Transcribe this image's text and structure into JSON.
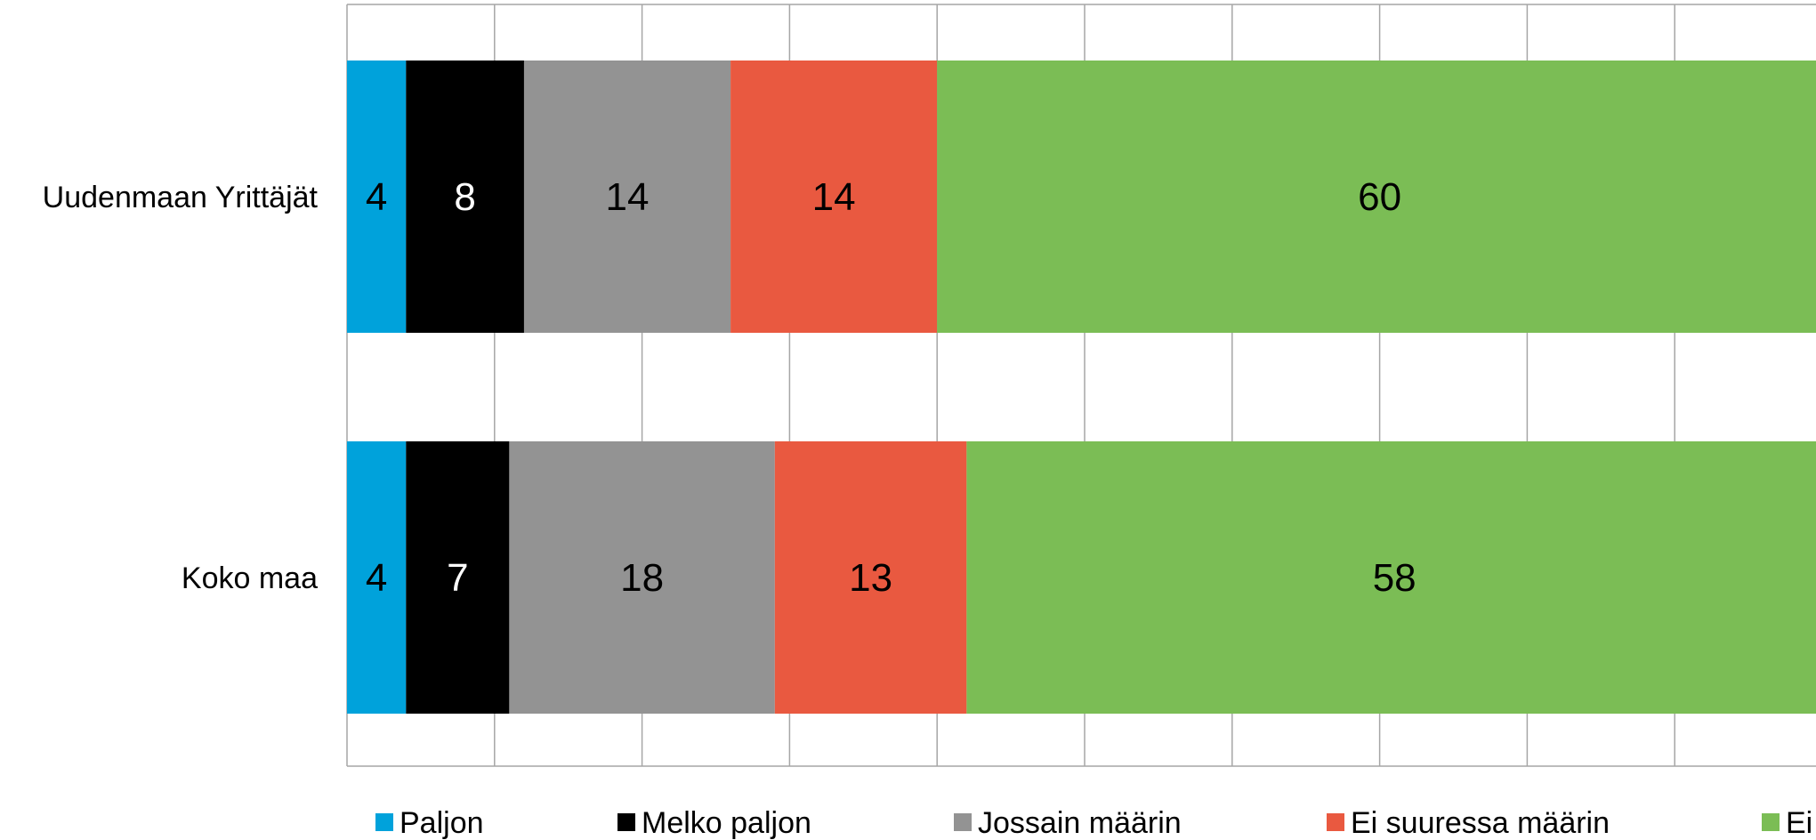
{
  "chart_data": {
    "type": "bar",
    "orientation": "horizontal",
    "stacked": true,
    "title": "",
    "xlabel": "",
    "ylabel": "",
    "xlim": [
      0,
      100
    ],
    "grid": true,
    "legend_position": "bottom",
    "categories": [
      "Uudenmaan Yrittäjät",
      "Koko maa"
    ],
    "series": [
      {
        "name": "Paljon",
        "color": "#00A2DB",
        "label_color": "#000000",
        "values": [
          4,
          4
        ]
      },
      {
        "name": "Melko paljon",
        "color": "#000000",
        "label_color": "#FFFFFF",
        "values": [
          8,
          7
        ]
      },
      {
        "name": "Jossain määrin",
        "color": "#939393",
        "label_color": "#000000",
        "values": [
          14,
          18
        ]
      },
      {
        "name": "Ei suuressa määrin",
        "color": "#E95940",
        "label_color": "#000000",
        "values": [
          14,
          13
        ]
      },
      {
        "name": "Ei",
        "color": "#7BBD55",
        "label_color": "#000000",
        "values": [
          60,
          58
        ]
      }
    ]
  }
}
